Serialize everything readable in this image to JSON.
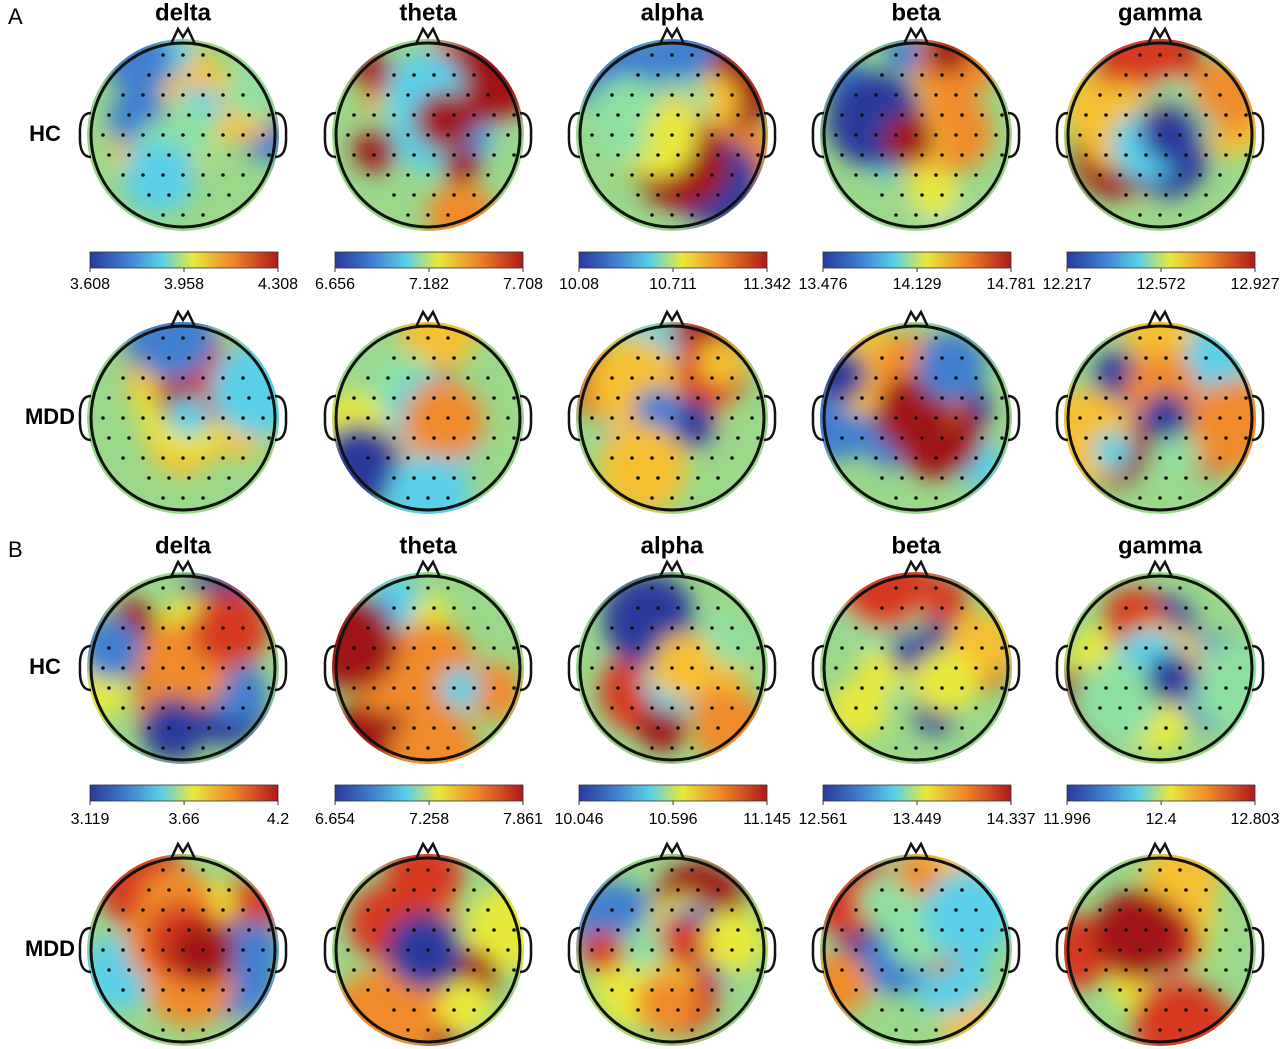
{
  "panels": [
    {
      "label": "A",
      "bands": [
        "delta",
        "theta",
        "alpha",
        "beta",
        "gamma"
      ],
      "rows": [
        "HC",
        "MDD"
      ],
      "colorbars": [
        [
          3.608,
          3.958,
          4.308
        ],
        [
          6.656,
          7.182,
          7.708
        ],
        [
          10.08,
          10.711,
          11.342
        ],
        [
          13.476,
          14.129,
          14.781
        ],
        [
          12.217,
          12.572,
          12.927
        ]
      ]
    },
    {
      "label": "B",
      "bands": [
        "delta",
        "theta",
        "alpha",
        "beta",
        "gamma"
      ],
      "rows": [
        "HC",
        "MDD"
      ],
      "colorbars": [
        [
          3.119,
          3.66,
          4.2
        ],
        [
          6.654,
          7.258,
          7.861
        ],
        [
          10.046,
          10.596,
          11.145
        ],
        [
          12.561,
          13.449,
          14.337
        ],
        [
          11.996,
          12.4,
          12.803
        ]
      ]
    }
  ]
}
